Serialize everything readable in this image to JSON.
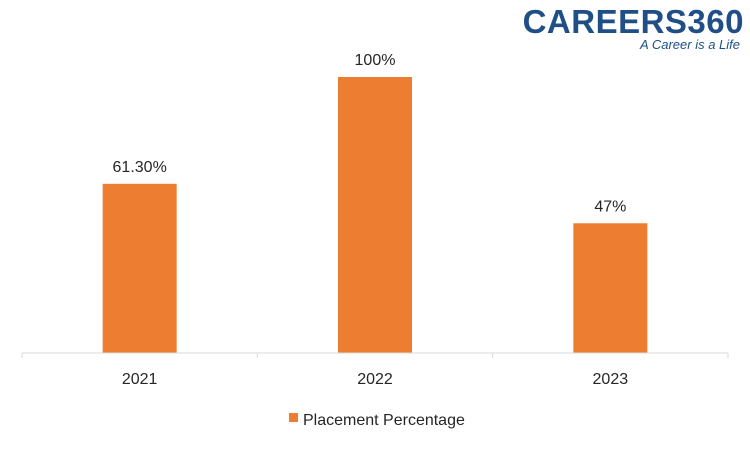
{
  "brand": {
    "name": "CAREERS360",
    "tagline": "A Career is a Life"
  },
  "chart_data": {
    "type": "bar",
    "categories": [
      "2021",
      "2022",
      "2023"
    ],
    "series": [
      {
        "name": "Placement Percentage",
        "values": [
          61.3,
          100,
          47
        ],
        "labels": [
          "61.30%",
          "100%",
          "47%"
        ],
        "color": "#ed7d31"
      }
    ],
    "title": "",
    "xlabel": "",
    "ylabel": "",
    "ylim": [
      0,
      100
    ],
    "grid": false,
    "legend": "bottom-center"
  }
}
